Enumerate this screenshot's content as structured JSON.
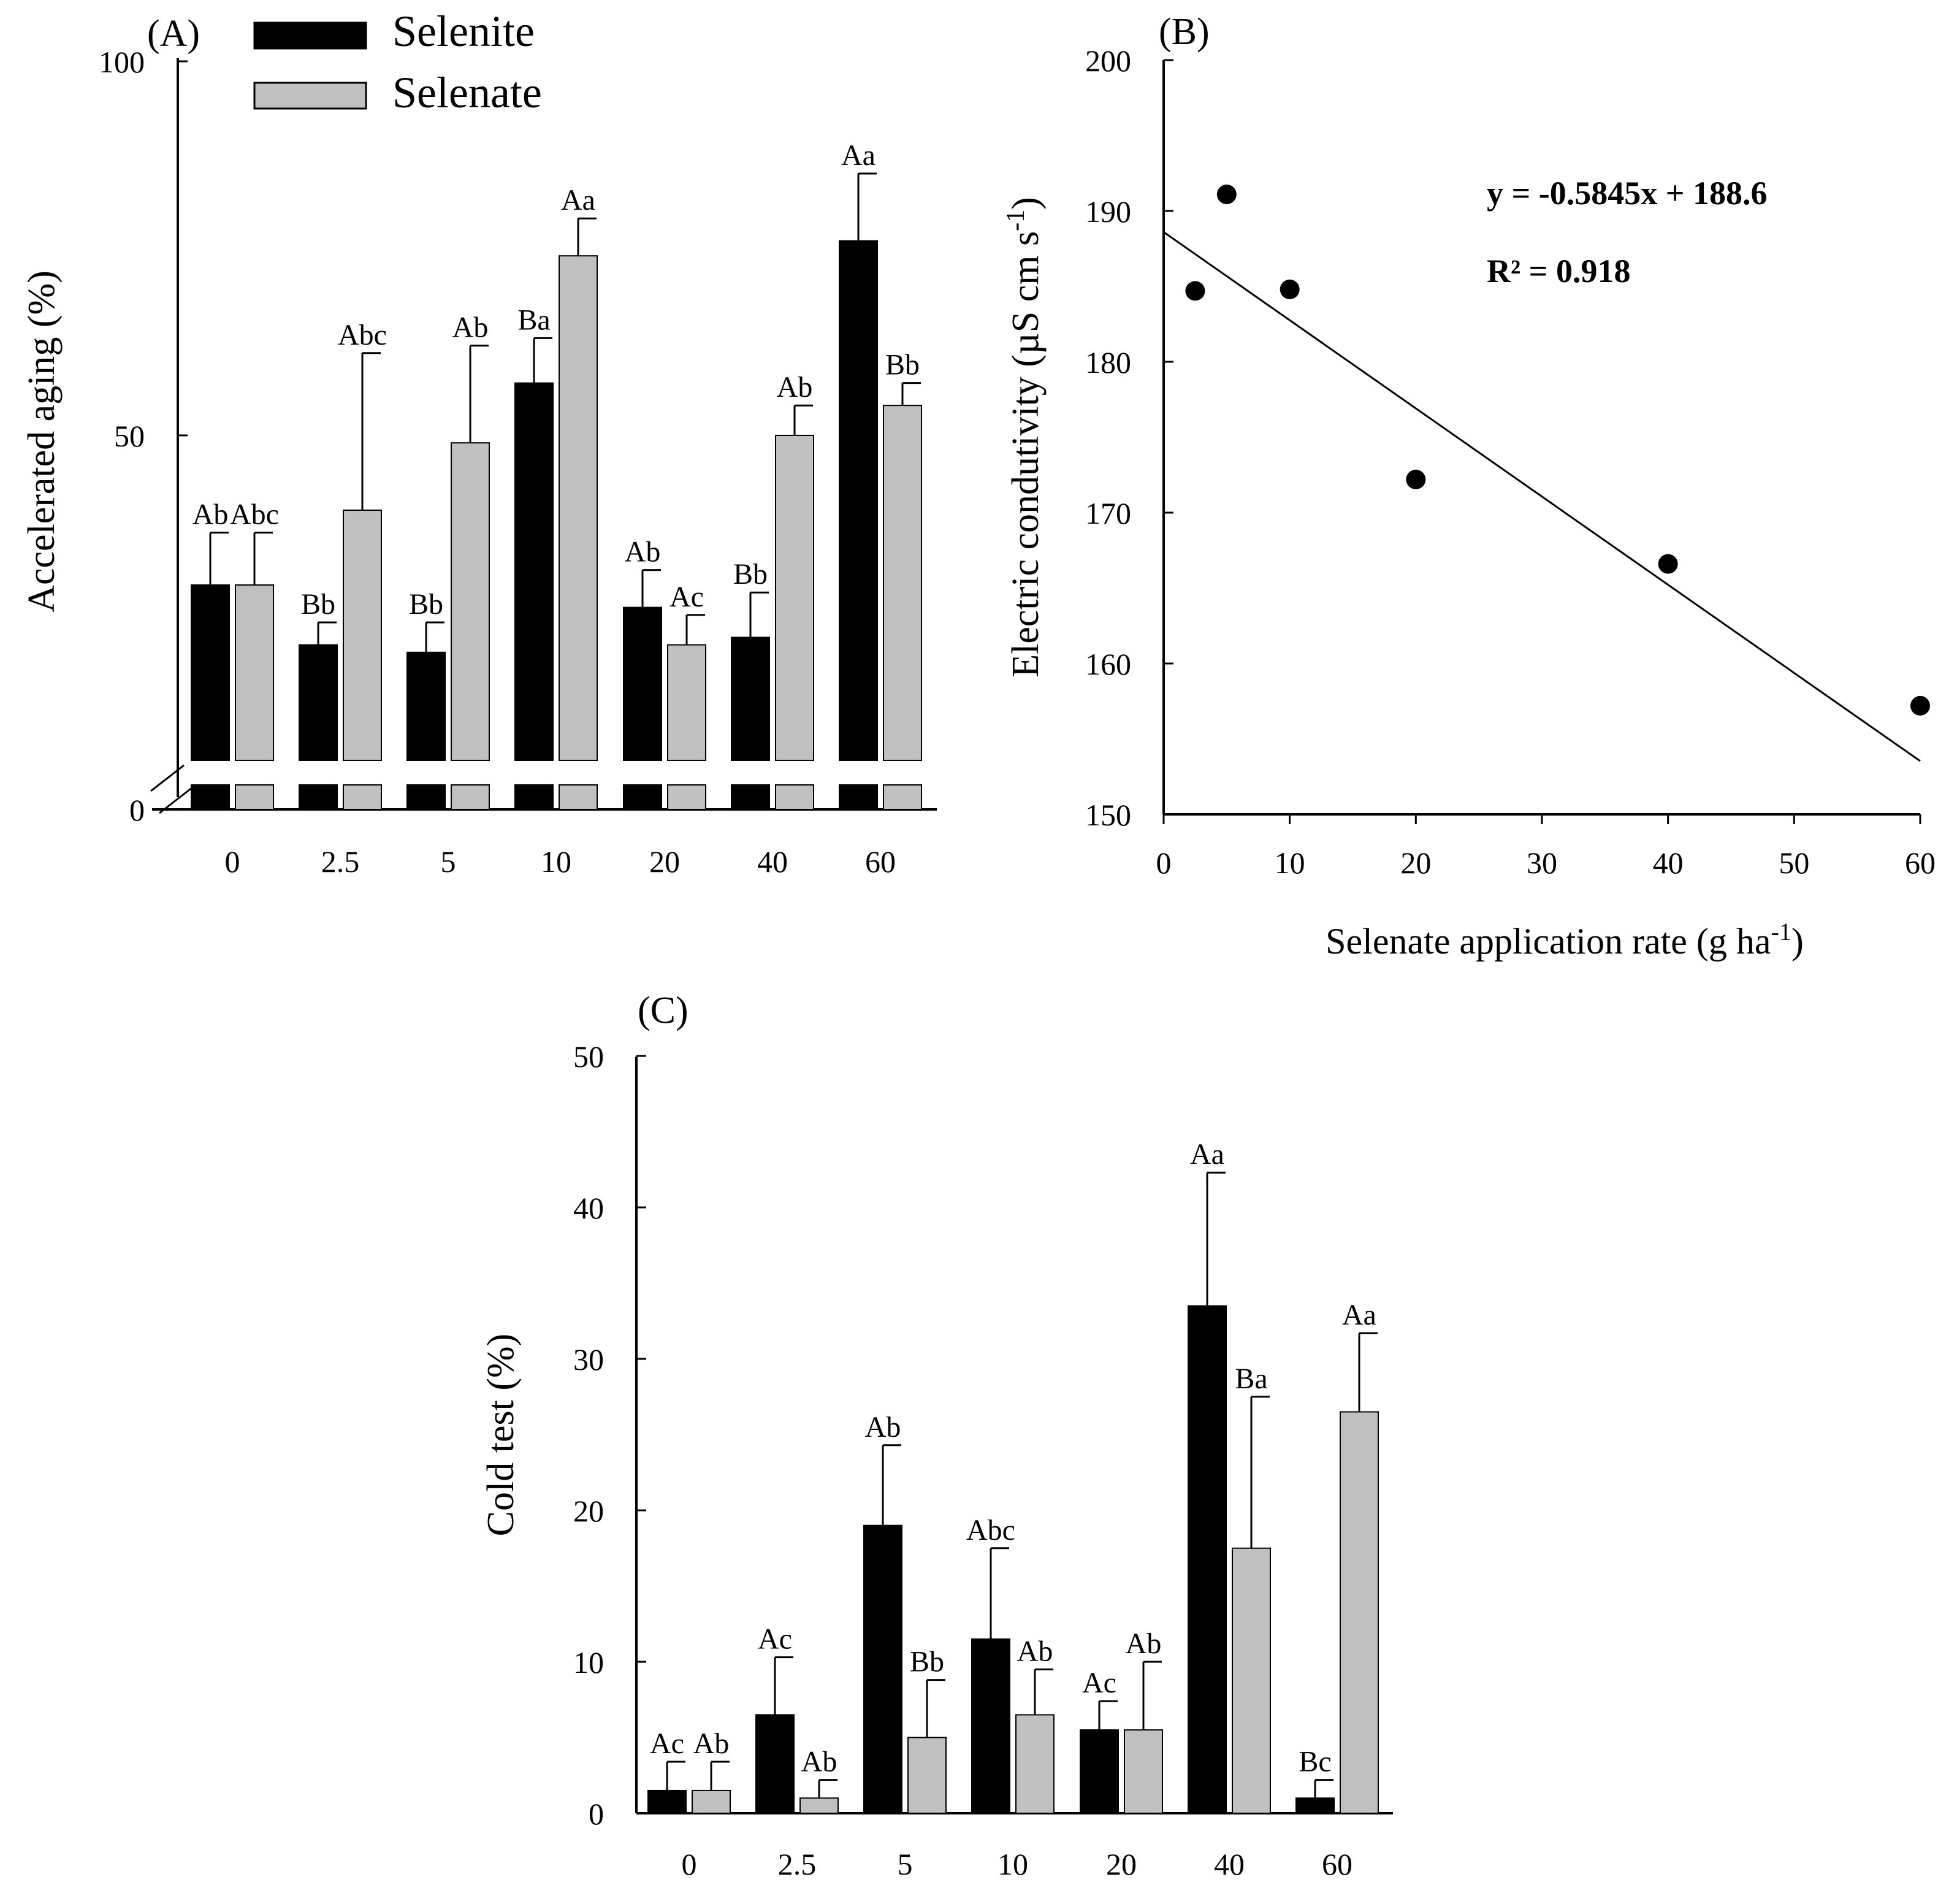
{
  "legend": {
    "entries": [
      {
        "label": "Selenite",
        "color": "#000000"
      },
      {
        "label": "Selenate",
        "color": "#c0c0c0"
      }
    ]
  },
  "shared_xlabel": "Selenate application rate (g ha",
  "shared_xlabel_sup": "-1",
  "shared_xlabel_end": ")",
  "chart_data": [
    {
      "panel": "(A)",
      "type": "bar",
      "ylabel": "Accelerated aging (%)",
      "ylim": [
        0,
        100
      ],
      "axis_break": true,
      "yticks": [
        "0",
        "50",
        "100"
      ],
      "categories": [
        "0",
        "2.5",
        "5",
        "10",
        "20",
        "40",
        "60"
      ],
      "series": [
        {
          "name": "Selenite",
          "color": "#000000",
          "values": [
            30,
            22,
            21,
            57,
            27,
            23,
            76
          ],
          "errors": [
            7,
            3,
            4,
            6,
            5,
            6,
            9
          ],
          "letters": [
            "Ab",
            "Bb",
            "Bb",
            "Ba",
            "Ab",
            "Bb",
            "Aa"
          ]
        },
        {
          "name": "Selenate",
          "color": "#c0c0c0",
          "values": [
            30,
            40,
            49,
            74,
            22,
            50,
            54
          ],
          "errors": [
            7,
            21,
            13,
            5,
            4,
            4,
            3
          ],
          "letters": [
            "Abc",
            "Abc",
            "Ab",
            "Aa",
            "Ac",
            "Ab",
            "Bb"
          ]
        }
      ]
    },
    {
      "panel": "(B)",
      "type": "scatter",
      "ylabel": "Electric condutivity (µS cm s",
      "ylabel_sup": "-1",
      "ylabel_end": ")",
      "xlim": [
        0,
        60
      ],
      "ylim": [
        150,
        200
      ],
      "xticks": [
        "0",
        "10",
        "20",
        "30",
        "40",
        "50",
        "60"
      ],
      "yticks": [
        "150",
        "160",
        "170",
        "180",
        "190",
        "200"
      ],
      "points": [
        {
          "x": 2.5,
          "y": 184.7
        },
        {
          "x": 5,
          "y": 191.1
        },
        {
          "x": 10,
          "y": 184.8
        },
        {
          "x": 20,
          "y": 172.2
        },
        {
          "x": 40,
          "y": 166.6
        },
        {
          "x": 60,
          "y": 157.2
        }
      ],
      "fit": {
        "slope": -0.5845,
        "intercept": 188.6
      },
      "equation": "y = -0.5845x + 188.6",
      "r2": "R² = 0.918"
    },
    {
      "panel": "(C)",
      "type": "bar",
      "ylabel": "Cold test (%)",
      "ylim": [
        0,
        50
      ],
      "yticks": [
        "0",
        "10",
        "20",
        "30",
        "40",
        "50"
      ],
      "categories": [
        "0",
        "2.5",
        "5",
        "10",
        "20",
        "40",
        "60"
      ],
      "series": [
        {
          "name": "Selenite",
          "color": "#000000",
          "values": [
            1.5,
            6.5,
            19,
            11.5,
            5.5,
            33.5,
            1
          ],
          "errors": [
            1.9,
            3.8,
            5.3,
            6,
            1.9,
            8.8,
            1.2
          ],
          "letters": [
            "Ac",
            "Ac",
            "Ab",
            "Abc",
            "Ac",
            "Aa",
            "Bc"
          ]
        },
        {
          "name": "Selenate",
          "color": "#c0c0c0",
          "values": [
            1.5,
            1,
            5,
            6.5,
            5.5,
            17.5,
            26.5
          ],
          "errors": [
            1.9,
            1.2,
            3.8,
            3,
            4.5,
            10,
            5.2
          ],
          "letters": [
            "Ab",
            "Ab",
            "Bb",
            "Ab",
            "Ab",
            "Ba",
            "Aa"
          ]
        }
      ]
    }
  ]
}
